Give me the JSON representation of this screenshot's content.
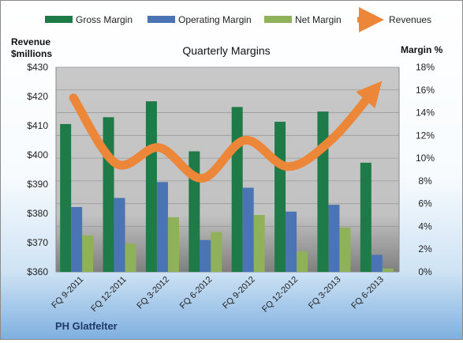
{
  "chart_data": {
    "type": "bar",
    "title": "Quarterly Margins",
    "company": "PH Glatfelter",
    "categories": [
      "FQ 9-2011",
      "FQ 12-2011",
      "FQ 3-2012",
      "FQ 6-2012",
      "FQ 9-2012",
      "FQ 12-2012",
      "FQ 3-2013",
      "FQ 6-2013"
    ],
    "series": [
      {
        "name": "Gross Margin",
        "axis": "right",
        "unit": "%",
        "values": [
          13.0,
          13.6,
          15.0,
          10.6,
          14.5,
          13.2,
          14.1,
          9.6
        ]
      },
      {
        "name": "Operating Margin",
        "axis": "right",
        "unit": "%",
        "values": [
          5.7,
          6.5,
          7.9,
          2.8,
          7.4,
          5.3,
          5.9,
          1.5
        ]
      },
      {
        "name": "Net Margin",
        "axis": "right",
        "unit": "%",
        "values": [
          3.2,
          2.5,
          4.8,
          3.5,
          5.0,
          1.8,
          3.9,
          0.3
        ]
      },
      {
        "name": "Revenues",
        "type": "line",
        "axis": "left",
        "unit": "$millions",
        "values": [
          419.5,
          397,
          402.5,
          392,
          405,
          396,
          405,
          422
        ]
      }
    ],
    "left_axis": {
      "label_line1": "Revenue",
      "label_line2": "$millions",
      "ylim": [
        360,
        430
      ],
      "ticks": [
        "$360",
        "$370",
        "$380",
        "$390",
        "$400",
        "$410",
        "$420",
        "$430"
      ]
    },
    "right_axis": {
      "label": "Margin %",
      "ylim": [
        0,
        18
      ],
      "ticks": [
        "0%",
        "2%",
        "4%",
        "6%",
        "8%",
        "10%",
        "12%",
        "14%",
        "16%",
        "18%"
      ]
    },
    "legend_position": "top",
    "gridlines": true,
    "colors": {
      "Gross Margin": "#1e7b48",
      "Operating Margin": "#4a74b4",
      "Net Margin": "#8fb159",
      "Revenues": "#ec8638"
    }
  }
}
